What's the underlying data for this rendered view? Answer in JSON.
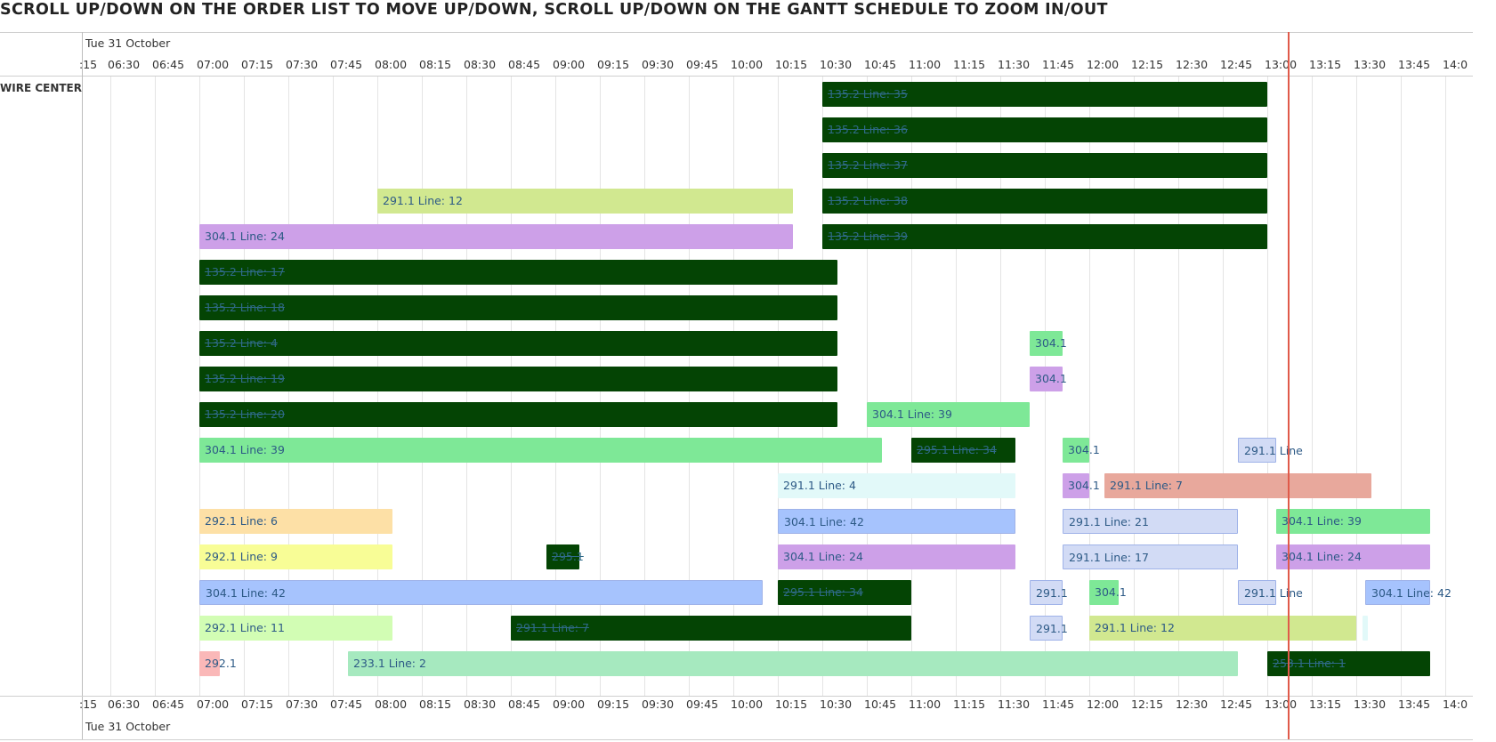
{
  "banner": "SCROLL UP/DOWN ON THE ORDER LIST TO MOVE UP/DOWN, SCROLL UP/DOWN ON THE GANTT SCHEDULE TO ZOOM IN/OUT",
  "header": {
    "date": "Tue 31 October"
  },
  "footer": {
    "date": "Tue 31 October"
  },
  "resource": "WIRE CENTER",
  "time_ticks": [
    ":15",
    "06:30",
    "06:45",
    "07:00",
    "07:15",
    "07:30",
    "07:45",
    "08:00",
    "08:15",
    "08:30",
    "08:45",
    "09:00",
    "09:15",
    "09:30",
    "09:45",
    "10:00",
    "10:15",
    "10:30",
    "10:45",
    "11:00",
    "11:15",
    "11:30",
    "11:45",
    "12:00",
    "12:15",
    "12:30",
    "12:45",
    "13:00",
    "13:15",
    "13:30",
    "13:45",
    "14:0"
  ],
  "current_time": "13:07",
  "colors": {
    "dark_green": "#044404",
    "purple": "#cda0e8",
    "mint": "#7ee897",
    "light_green": "#a6e9bf",
    "lime": "#d1e890",
    "pale_green": "#d2fdb4",
    "yellow": "#f8fd96",
    "peach": "#fde0a6",
    "blue": "#a6c3fd",
    "lavender": "#d2dbf5",
    "light_cyan": "#e2f9f9",
    "salmon": "#e8a89c",
    "pink": "#fab8b8",
    "now_line": "#e05a4a"
  },
  "bars": [
    {
      "label": "135.2 Line: 35",
      "start": "10:30",
      "end": "13:00",
      "row": 0,
      "color": "dark_green",
      "done": true
    },
    {
      "label": "135.2 Line: 36",
      "start": "10:30",
      "end": "13:00",
      "row": 1,
      "color": "dark_green",
      "done": true
    },
    {
      "label": "135.2 Line: 37",
      "start": "10:30",
      "end": "13:00",
      "row": 2,
      "color": "dark_green",
      "done": true
    },
    {
      "label": "291.1 Line: 12",
      "start": "08:00",
      "end": "10:20",
      "row": 3,
      "color": "lime",
      "done": false
    },
    {
      "label": "135.2 Line: 38",
      "start": "10:30",
      "end": "13:00",
      "row": 3,
      "color": "dark_green",
      "done": true
    },
    {
      "label": "304.1 Line: 24",
      "start": "07:00",
      "end": "10:20",
      "row": 4,
      "color": "purple",
      "done": false
    },
    {
      "label": "135.2 Line: 39",
      "start": "10:30",
      "end": "13:00",
      "row": 4,
      "color": "dark_green",
      "done": true
    },
    {
      "label": "135.2 Line: 17",
      "start": "07:00",
      "end": "10:35",
      "row": 5,
      "color": "dark_green",
      "done": true
    },
    {
      "label": "135.2 Line: 18",
      "start": "07:00",
      "end": "10:35",
      "row": 6,
      "color": "dark_green",
      "done": true
    },
    {
      "label": "135.2 Line: 4",
      "start": "07:00",
      "end": "10:35",
      "row": 7,
      "color": "dark_green",
      "done": true
    },
    {
      "label": "304.1",
      "start": "11:40",
      "end": "11:51",
      "row": 7,
      "color": "mint",
      "done": false
    },
    {
      "label": "135.2 Line: 19",
      "start": "07:00",
      "end": "10:35",
      "row": 8,
      "color": "dark_green",
      "done": true
    },
    {
      "label": "304.1",
      "start": "11:40",
      "end": "11:51",
      "row": 8,
      "color": "purple",
      "done": false
    },
    {
      "label": "135.2 Line: 20",
      "start": "07:00",
      "end": "10:35",
      "row": 9,
      "color": "dark_green",
      "done": true
    },
    {
      "label": "304.1 Line: 39",
      "start": "10:45",
      "end": "11:40",
      "row": 9,
      "color": "mint",
      "done": false
    },
    {
      "label": "304.1 Line: 39",
      "start": "07:00",
      "end": "10:50",
      "row": 10,
      "color": "mint",
      "done": false
    },
    {
      "label": "295.1 Line: 34",
      "start": "11:00",
      "end": "11:35",
      "row": 10,
      "color": "dark_green",
      "done": true
    },
    {
      "label": "304.1",
      "start": "11:51",
      "end": "12:00",
      "row": 10,
      "color": "mint",
      "done": false
    },
    {
      "label": "291.1 Line",
      "start": "12:50",
      "end": "13:03",
      "row": 10,
      "color": "lavender",
      "done": false
    },
    {
      "label": "291.1 Line: 4",
      "start": "10:15",
      "end": "11:35",
      "row": 11,
      "color": "light_cyan",
      "done": false
    },
    {
      "label": "304.1",
      "start": "11:51",
      "end": "12:00",
      "row": 11,
      "color": "purple",
      "done": false
    },
    {
      "label": "291.1 Line: 7",
      "start": "12:05",
      "end": "13:35",
      "row": 11,
      "color": "salmon",
      "done": false
    },
    {
      "label": "292.1 Line: 6",
      "start": "07:00",
      "end": "08:05",
      "row": 12,
      "color": "peach",
      "done": false
    },
    {
      "label": "304.1 Line: 42",
      "start": "10:15",
      "end": "11:35",
      "row": 12,
      "color": "blue",
      "done": false
    },
    {
      "label": "291.1 Line: 21",
      "start": "11:51",
      "end": "12:50",
      "row": 12,
      "color": "lavender",
      "done": false
    },
    {
      "label": "304.1 Line: 39",
      "start": "13:03",
      "end": "13:55",
      "row": 12,
      "color": "mint",
      "done": false
    },
    {
      "label": "292.1 Line: 9",
      "start": "07:00",
      "end": "08:05",
      "row": 13,
      "color": "yellow",
      "done": false
    },
    {
      "label": "295.1",
      "start": "08:57",
      "end": "09:08",
      "row": 13,
      "color": "dark_green",
      "done": true
    },
    {
      "label": "304.1 Line: 24",
      "start": "10:15",
      "end": "11:35",
      "row": 13,
      "color": "purple",
      "done": false
    },
    {
      "label": "291.1 Line: 17",
      "start": "11:51",
      "end": "12:50",
      "row": 13,
      "color": "lavender",
      "done": false
    },
    {
      "label": "304.1 Line: 24",
      "start": "13:03",
      "end": "13:55",
      "row": 13,
      "color": "purple",
      "done": false
    },
    {
      "label": "304.1 Line: 42",
      "start": "07:00",
      "end": "10:10",
      "row": 14,
      "color": "blue",
      "done": false
    },
    {
      "label": "295.1 Line: 34",
      "start": "10:15",
      "end": "11:00",
      "row": 14,
      "color": "dark_green",
      "done": true
    },
    {
      "label": "291.1",
      "start": "11:40",
      "end": "11:51",
      "row": 14,
      "color": "lavender",
      "done": false
    },
    {
      "label": "304.1",
      "start": "12:00",
      "end": "12:10",
      "row": 14,
      "color": "mint",
      "done": false
    },
    {
      "label": "291.1 Line",
      "start": "12:50",
      "end": "13:03",
      "row": 14,
      "color": "lavender",
      "done": false
    },
    {
      "label": "304.1 Line: 42",
      "start": "13:33",
      "end": "13:55",
      "row": 14,
      "color": "blue",
      "done": false
    },
    {
      "label": "291.1 Line: 7",
      "start": "08:45",
      "end": "11:00",
      "row": 15,
      "color": "dark_green",
      "done": true
    },
    {
      "label": "292.1 Line: 11",
      "start": "07:00",
      "end": "08:05",
      "row": 15,
      "color": "pale_green",
      "done": false
    },
    {
      "label": "291.1",
      "start": "11:40",
      "end": "11:51",
      "row": 15,
      "color": "lavender",
      "done": false
    },
    {
      "label": "291.1 Line: 12",
      "start": "12:00",
      "end": "13:30",
      "row": 15,
      "color": "lime",
      "done": false
    },
    {
      "label": "",
      "start": "13:32",
      "end": "13:33",
      "row": 15,
      "color": "light_cyan",
      "done": false
    },
    {
      "label": "292.1",
      "start": "07:00",
      "end": "07:07",
      "row": 16,
      "color": "pink",
      "done": false
    },
    {
      "label": "233.1 Line: 2",
      "start": "07:50",
      "end": "12:50",
      "row": 16,
      "color": "light_green",
      "done": false
    },
    {
      "label": "253.1 Line: 1",
      "start": "13:00",
      "end": "13:55",
      "row": 16,
      "color": "dark_green",
      "done": true
    }
  ]
}
